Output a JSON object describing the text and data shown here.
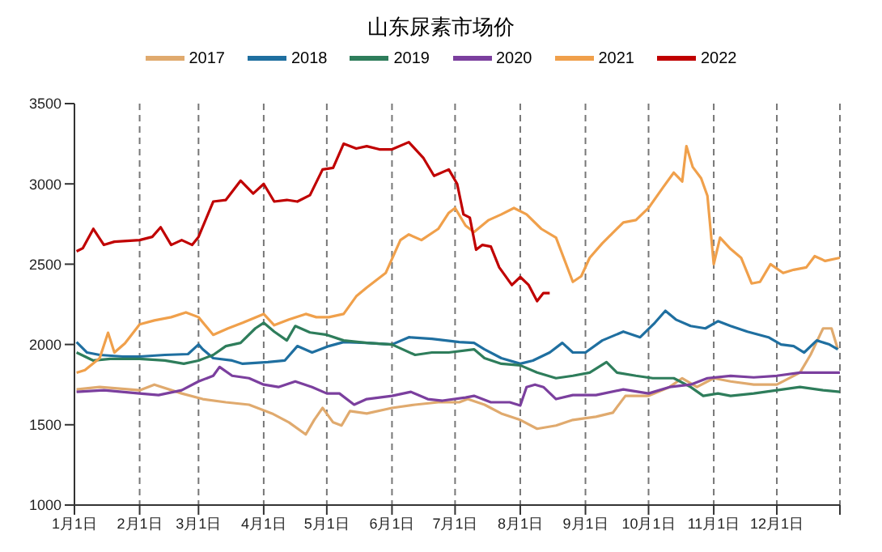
{
  "chart_data": {
    "type": "line",
    "title": "山东尿素市场价",
    "legend": "top",
    "grid": "x",
    "marker": "none",
    "line_style": "solid",
    "xlim": [
      "--01-01",
      "--12-31"
    ],
    "xticks": [
      {
        "value": "--01-01",
        "label": "1月1日"
      },
      {
        "value": "--02-01",
        "label": "2月1日"
      },
      {
        "value": "--03-01",
        "label": "3月1日"
      },
      {
        "value": "--04-01",
        "label": "4月1日"
      },
      {
        "value": "--05-01",
        "label": "5月1日"
      },
      {
        "value": "--06-01",
        "label": "6月1日"
      },
      {
        "value": "--07-01",
        "label": "7月1日"
      },
      {
        "value": "--08-01",
        "label": "8月1日"
      },
      {
        "value": "--09-01",
        "label": "9月1日"
      },
      {
        "value": "--10-01",
        "label": "10月1日"
      },
      {
        "value": "--11-01",
        "label": "11月1日"
      },
      {
        "value": "--12-01",
        "label": "12月1日"
      },
      {
        "value": "--12-31",
        "label": null
      }
    ],
    "ylim": [
      1000,
      3500
    ],
    "yticks": [
      1000,
      1500,
      2000,
      2500,
      3000,
      3500
    ],
    "series": [
      {
        "name": "2017",
        "color": "#e0aa6e",
        "x": [
          "--01-02",
          "--01-13",
          "--02-01",
          "--02-08",
          "--02-21",
          "--03-03",
          "--03-14",
          "--03-25",
          "--04-05",
          "--04-13",
          "--04-21",
          "--04-25",
          "--04-29",
          "--05-04",
          "--05-08",
          "--05-12",
          "--05-20",
          "--06-01",
          "--06-12",
          "--06-23",
          "--07-03",
          "--07-07",
          "--07-15",
          "--07-23",
          "--08-01",
          "--08-09",
          "--08-18",
          "--08-26",
          "--09-06",
          "--09-14",
          "--09-20",
          "--10-01",
          "--10-11",
          "--10-17",
          "--10-24",
          "--11-01",
          "--11-09",
          "--11-20",
          "--12-01",
          "--12-12",
          "--12-17",
          "--12-23",
          "--12-27",
          "--12-30"
        ],
        "values": [
          1720,
          1735,
          1715,
          1750,
          1695,
          1660,
          1640,
          1625,
          1570,
          1515,
          1440,
          1530,
          1605,
          1515,
          1495,
          1585,
          1570,
          1605,
          1625,
          1640,
          1640,
          1660,
          1625,
          1570,
          1530,
          1475,
          1495,
          1530,
          1550,
          1575,
          1680,
          1680,
          1735,
          1790,
          1735,
          1790,
          1770,
          1750,
          1750,
          1825,
          1935,
          2100,
          2100,
          1970
        ]
      },
      {
        "name": "2018",
        "color": "#1f6fa0",
        "x": [
          "--01-02",
          "--01-07",
          "--01-13",
          "--01-24",
          "--02-01",
          "--02-13",
          "--02-24",
          "--03-01",
          "--03-03",
          "--03-08",
          "--03-17",
          "--03-22",
          "--04-03",
          "--04-11",
          "--04-17",
          "--04-24",
          "--05-02",
          "--05-09",
          "--05-20",
          "--06-01",
          "--06-09",
          "--06-20",
          "--07-03",
          "--07-10",
          "--07-15",
          "--07-23",
          "--08-01",
          "--08-07",
          "--08-15",
          "--08-21",
          "--08-26",
          "--09-01",
          "--09-09",
          "--09-19",
          "--09-27",
          "--10-04",
          "--10-09",
          "--10-14",
          "--10-21",
          "--10-28",
          "--11-03",
          "--11-09",
          "--11-17",
          "--11-27",
          "--12-03",
          "--12-09",
          "--12-14",
          "--12-20",
          "--12-26",
          "--12-30"
        ],
        "values": [
          2015,
          1950,
          1935,
          1925,
          1925,
          1935,
          1940,
          2000,
          1970,
          1915,
          1900,
          1880,
          1890,
          1900,
          1990,
          1950,
          1990,
          2015,
          2010,
          2000,
          2045,
          2035,
          2015,
          2010,
          1970,
          1915,
          1880,
          1900,
          1950,
          2010,
          1950,
          1950,
          2025,
          2080,
          2045,
          2135,
          2210,
          2155,
          2115,
          2100,
          2145,
          2115,
          2080,
          2045,
          2000,
          1990,
          1950,
          2025,
          2000,
          1970
        ]
      },
      {
        "name": "2019",
        "color": "#2e7d5b",
        "x": [
          "--01-02",
          "--01-10",
          "--01-18",
          "--02-01",
          "--02-13",
          "--02-22",
          "--03-01",
          "--03-08",
          "--03-14",
          "--03-21",
          "--03-28",
          "--04-01",
          "--04-06",
          "--04-12",
          "--04-16",
          "--04-23",
          "--05-01",
          "--05-09",
          "--05-20",
          "--06-01",
          "--06-12",
          "--06-20",
          "--06-28",
          "--07-10",
          "--07-15",
          "--07-23",
          "--08-01",
          "--08-09",
          "--08-18",
          "--08-26",
          "--09-03",
          "--09-11",
          "--09-16",
          "--09-25",
          "--10-03",
          "--10-13",
          "--10-21",
          "--10-27",
          "--11-03",
          "--11-09",
          "--11-20",
          "--12-01",
          "--12-12",
          "--12-23",
          "--12-31"
        ],
        "values": [
          1950,
          1900,
          1910,
          1910,
          1900,
          1880,
          1900,
          1935,
          1990,
          2010,
          2100,
          2135,
          2080,
          2025,
          2115,
          2075,
          2060,
          2025,
          2010,
          2000,
          1935,
          1950,
          1950,
          1970,
          1915,
          1880,
          1870,
          1825,
          1790,
          1805,
          1825,
          1890,
          1825,
          1805,
          1790,
          1790,
          1735,
          1680,
          1695,
          1680,
          1695,
          1715,
          1735,
          1715,
          1705
        ]
      },
      {
        "name": "2020",
        "color": "#7b3f9e",
        "x": [
          "--01-02",
          "--01-15",
          "--02-01",
          "--02-10",
          "--02-21",
          "--03-01",
          "--03-08",
          "--03-11",
          "--03-17",
          "--03-25",
          "--04-01",
          "--04-08",
          "--04-16",
          "--04-24",
          "--05-01",
          "--05-07",
          "--05-14",
          "--05-20",
          "--06-01",
          "--06-10",
          "--06-18",
          "--06-25",
          "--07-06",
          "--07-10",
          "--07-18",
          "--07-27",
          "--08-01",
          "--08-04",
          "--08-08",
          "--08-12",
          "--08-18",
          "--08-26",
          "--09-06",
          "--09-19",
          "--10-01",
          "--10-11",
          "--10-21",
          "--10-29",
          "--11-09",
          "--11-20",
          "--12-01",
          "--12-12",
          "--12-23",
          "--12-31"
        ],
        "values": [
          1705,
          1715,
          1695,
          1685,
          1715,
          1770,
          1805,
          1860,
          1805,
          1790,
          1750,
          1735,
          1770,
          1735,
          1695,
          1695,
          1625,
          1660,
          1680,
          1705,
          1660,
          1650,
          1670,
          1680,
          1640,
          1640,
          1620,
          1735,
          1750,
          1735,
          1660,
          1685,
          1685,
          1720,
          1695,
          1735,
          1750,
          1790,
          1805,
          1795,
          1805,
          1825,
          1825,
          1825
        ]
      },
      {
        "name": "2021",
        "color": "#f0a04b",
        "x": [
          "--01-02",
          "--01-06",
          "--01-13",
          "--01-17",
          "--01-20",
          "--01-25",
          "--02-01",
          "--02-08",
          "--02-16",
          "--02-23",
          "--03-01",
          "--03-08",
          "--03-15",
          "--03-22",
          "--04-01",
          "--04-06",
          "--04-13",
          "--04-21",
          "--04-26",
          "--05-02",
          "--05-09",
          "--05-15",
          "--05-20",
          "--05-29",
          "--06-05",
          "--06-09",
          "--06-15",
          "--06-23",
          "--06-28",
          "--07-01",
          "--07-06",
          "--07-10",
          "--07-17",
          "--07-23",
          "--07-29",
          "--08-04",
          "--08-11",
          "--08-18",
          "--08-26",
          "--08-30",
          "--09-03",
          "--09-09",
          "--09-19",
          "--09-25",
          "--10-01",
          "--10-08",
          "--10-13",
          "--10-17",
          "--10-19",
          "--10-22",
          "--10-26",
          "--10-29",
          "--11-01",
          "--11-04",
          "--11-09",
          "--11-14",
          "--11-19",
          "--11-23",
          "--11-28",
          "--12-04",
          "--12-09",
          "--12-15",
          "--12-19",
          "--12-24",
          "--12-31"
        ],
        "values": [
          1824,
          1840,
          1915,
          2073,
          1950,
          2007,
          2125,
          2150,
          2170,
          2200,
          2170,
          2060,
          2100,
          2135,
          2190,
          2120,
          2155,
          2190,
          2170,
          2170,
          2190,
          2300,
          2355,
          2445,
          2650,
          2685,
          2650,
          2720,
          2820,
          2850,
          2740,
          2700,
          2775,
          2810,
          2850,
          2810,
          2720,
          2665,
          2390,
          2425,
          2540,
          2630,
          2760,
          2775,
          2850,
          2980,
          3070,
          3015,
          3235,
          3105,
          3035,
          2925,
          2500,
          2665,
          2595,
          2540,
          2380,
          2390,
          2500,
          2445,
          2465,
          2480,
          2550,
          2520,
          2540
        ]
      },
      {
        "name": "2022",
        "color": "#c00000",
        "x": [
          "--01-02",
          "--01-05",
          "--01-10",
          "--01-15",
          "--01-20",
          "--02-01",
          "--02-07",
          "--02-11",
          "--02-16",
          "--02-21",
          "--02-26",
          "--03-01",
          "--03-08",
          "--03-14",
          "--03-21",
          "--03-27",
          "--04-01",
          "--04-06",
          "--04-12",
          "--04-17",
          "--04-23",
          "--04-29",
          "--05-04",
          "--05-09",
          "--05-15",
          "--05-20",
          "--05-26",
          "--06-01",
          "--06-09",
          "--06-16",
          "--06-21",
          "--06-28",
          "--07-02",
          "--07-05",
          "--07-08",
          "--07-11",
          "--07-14",
          "--07-18",
          "--07-22",
          "--07-28",
          "--08-01",
          "--08-05",
          "--08-09",
          "--08-12",
          "--08-15"
        ],
        "values": [
          2580,
          2600,
          2720,
          2620,
          2640,
          2650,
          2670,
          2730,
          2620,
          2650,
          2620,
          2670,
          2890,
          2900,
          3020,
          2940,
          3000,
          2890,
          2900,
          2890,
          2930,
          3090,
          3100,
          3250,
          3220,
          3235,
          3215,
          3215,
          3260,
          3160,
          3050,
          3090,
          3000,
          2810,
          2790,
          2590,
          2620,
          2610,
          2480,
          2370,
          2420,
          2370,
          2270,
          2320,
          2320
        ]
      }
    ]
  }
}
